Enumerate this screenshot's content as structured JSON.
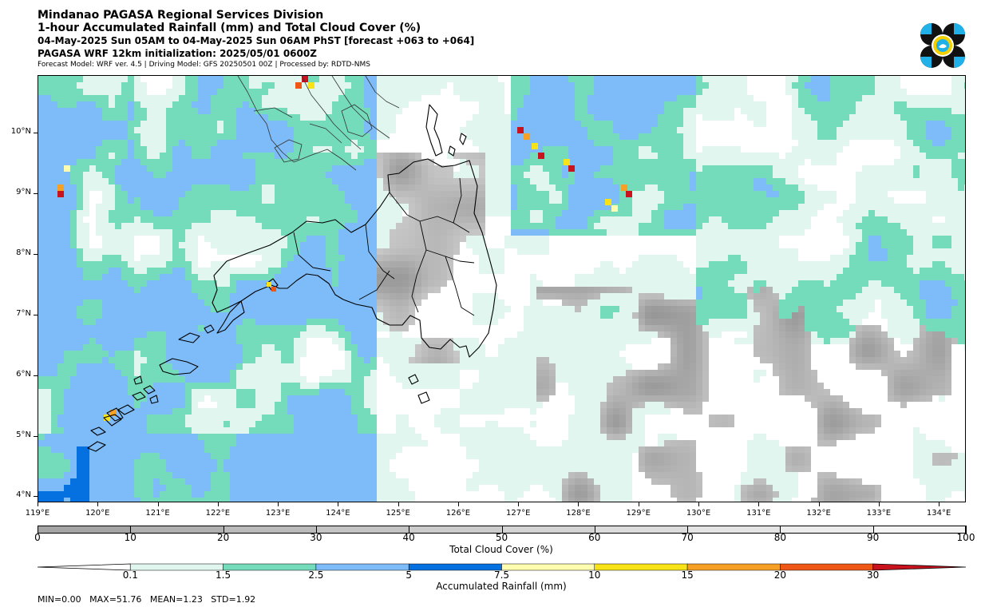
{
  "header": {
    "line1": "Mindanao PAGASA Regional Services Division",
    "line2": "1-hour Accumulated Rainfall (mm) and Total Cloud Cover (%)",
    "line3": "04-May-2025 Sun 05AM to 04-May-2025 Sun 06AM PhST [forecast +063 to +064]",
    "line4": "PAGASA WRF 12km initialization: 2025/05/01 0600Z",
    "line5": "Forecast Model: WRF ver. 4.5 | Driving Model: GFS 20250501 00Z | Processed by: RDTD-NMS"
  },
  "map": {
    "lon_range": [
      119.0,
      134.45
    ],
    "lat_range": [
      3.9,
      10.95
    ],
    "lat_labels": [
      "10°N",
      "9°N",
      "8°N",
      "7°N",
      "6°N",
      "5°N",
      "4°N"
    ],
    "lat_values": [
      10,
      9,
      8,
      7,
      6,
      5,
      4
    ],
    "lon_labels": [
      "119°E",
      "120°E",
      "121°E",
      "122°E",
      "123°E",
      "124°E",
      "125°E",
      "126°E",
      "127°E",
      "128°E",
      "129°E",
      "130°E",
      "131°E",
      "132°E",
      "133°E",
      "134°E"
    ],
    "lon_values": [
      119,
      120,
      121,
      122,
      123,
      124,
      125,
      126,
      127,
      128,
      129,
      130,
      131,
      132,
      133,
      134
    ]
  },
  "cloud_colorbar": {
    "ticks": [
      "0",
      "10",
      "20",
      "30",
      "40",
      "50",
      "60",
      "70",
      "80",
      "90",
      "100"
    ],
    "title": "Total Cloud Cover (%)",
    "colors": [
      "#a5a5a5",
      "#b0b0b0",
      "#bbbbbb",
      "#c4c4c4",
      "#cccccc",
      "#d4d4d4",
      "#dcdcdc",
      "#e4e4e4",
      "#ececec",
      "#f4f4f4"
    ]
  },
  "rain_colorbar": {
    "ticks": [
      "0.1",
      "1.5",
      "2.5",
      "5",
      "7.5",
      "10",
      "15",
      "20",
      "30"
    ],
    "title": "Accumulated Rainfall (mm)",
    "colors": [
      "#e0f6ee",
      "#74dbbb",
      "#7dbcf8",
      "#0571e0",
      "#fffdb0",
      "#f8e318",
      "#f7a026",
      "#ef5716",
      "#c8131e"
    ]
  },
  "stats": {
    "text": "MIN=0.00   MAX=51.76   MEAN=1.23   STD=1.92"
  },
  "colors": {
    "rain_0_1": "#e0f6ee",
    "rain_1_5": "#74dbbb",
    "rain_2_5": "#7dbcf8",
    "rain_5": "#0571e0",
    "rain_7_5": "#fffdb0",
    "rain_10": "#f8e318",
    "rain_15": "#f7a026",
    "rain_20": "#ef5716",
    "rain_30": "#c8131e",
    "logo_blue": "#1fb1e8"
  },
  "logo": {
    "icon": "pagasa-logo-icon"
  }
}
